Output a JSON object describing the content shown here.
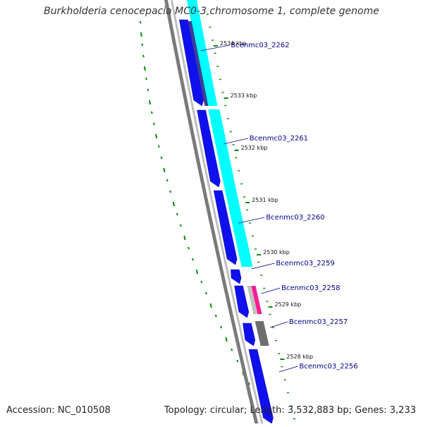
{
  "title": "Burkholderia cenocepacia MC0-3 chromosome 1, complete genome",
  "footer": {
    "accession": "Accession: NC_010508",
    "summary": "Topology: circular; Length: 3,532,883 bp; Genes: 3,233"
  },
  "colors": {
    "cds": "#1010ee",
    "blast_hit": "#00ffff",
    "pink_hit": "#ff1b94",
    "gray_feature": "#6e6e6e",
    "backbone": "#7a7a7a",
    "gc_skew": "#0a8a0a",
    "gene_label": "#00008b"
  },
  "kbp_ticks": [
    "2534 kbp",
    "2533 kbp",
    "2532 kbp",
    "2531 kbp",
    "2530 kbp",
    "2529 kbp",
    "2528 kbp"
  ],
  "gene_labels": [
    "Bcenmc03_2262",
    "Bcenmc03_2261",
    "Bcenmc03_2260",
    "Bcenmc03_2259",
    "Bcenmc03_2258",
    "Bcenmc03_2257",
    "Bcenmc03_2256"
  ]
}
